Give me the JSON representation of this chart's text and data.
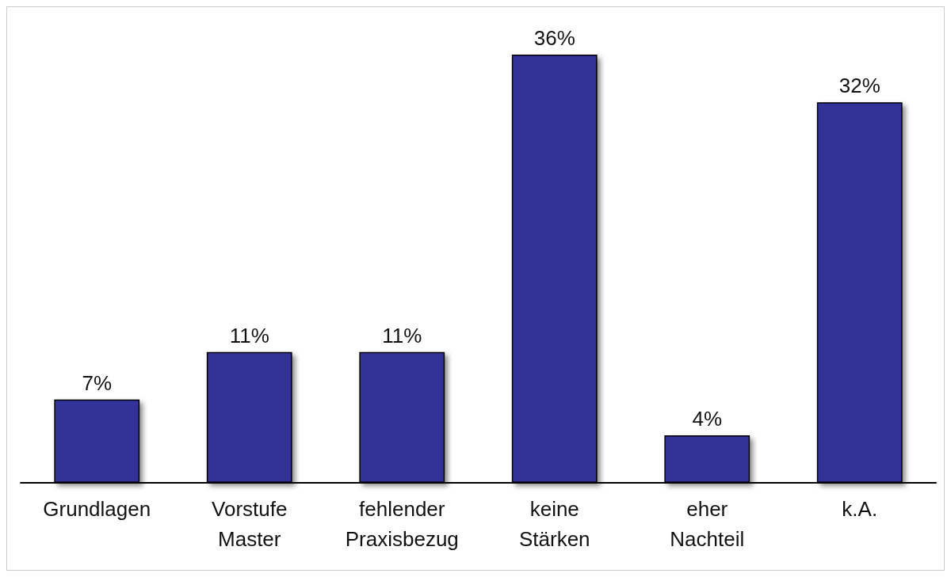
{
  "chart_data": {
    "type": "bar",
    "categories": [
      "Grundlagen",
      "Vorstufe\nMaster",
      "fehlender\nPraxisbezug",
      "keine\nStärken",
      "eher\nNachteil",
      "k.A."
    ],
    "values": [
      7,
      11,
      11,
      36,
      4,
      32
    ],
    "color": "#333399",
    "value_labels": [
      "7%",
      "11%",
      "11%",
      "36%",
      "4%",
      "32%"
    ]
  }
}
